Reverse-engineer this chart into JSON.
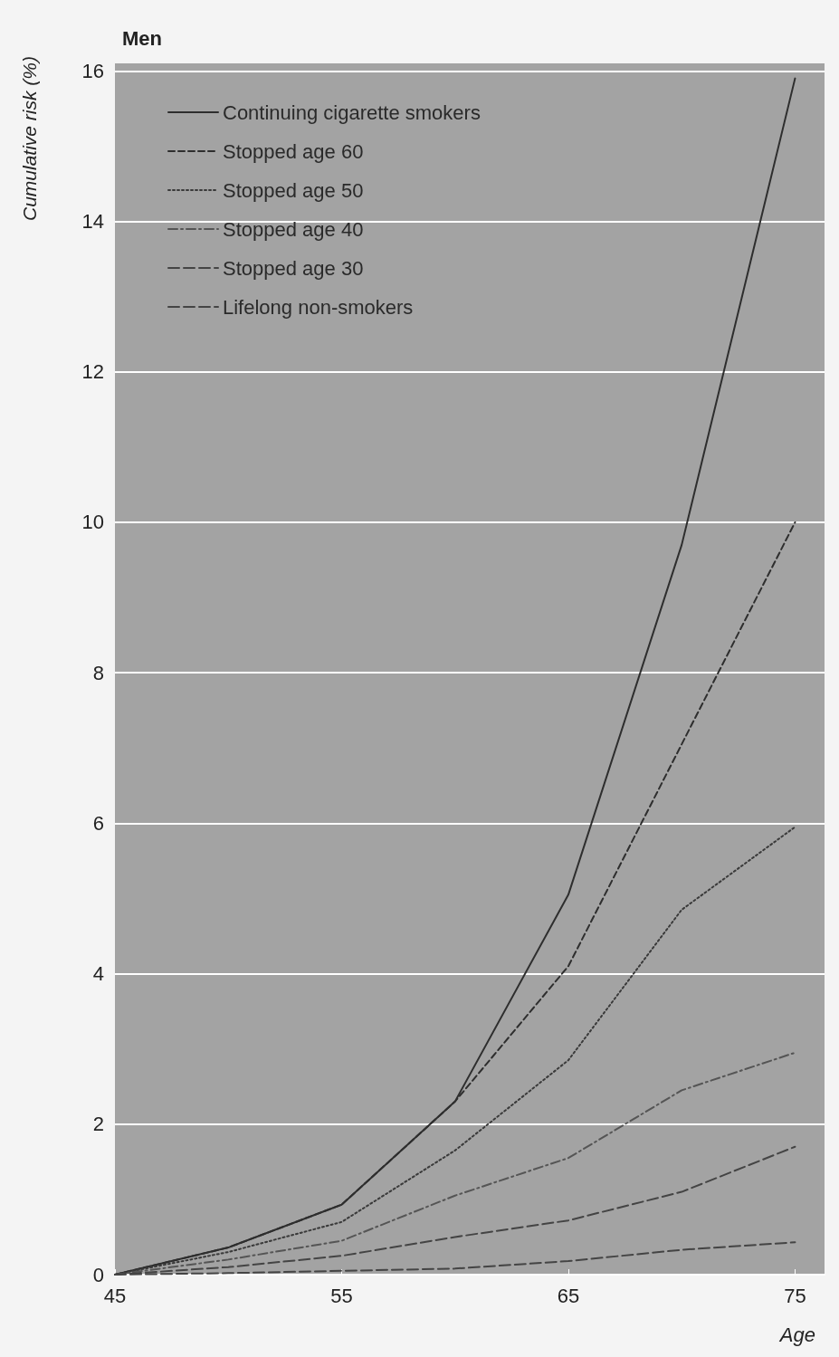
{
  "chart_data": {
    "type": "line",
    "title": "Men",
    "ylabel": "Cumulative risk (%)",
    "xlabel": "Age",
    "x": [
      45,
      50,
      55,
      60,
      65,
      70,
      75
    ],
    "series": [
      {
        "name": "Continuing cigarette smokers",
        "color": "#2e2e2e",
        "line_style": "solid",
        "values": [
          0,
          0.36,
          0.93,
          2.3,
          5.05,
          9.7,
          15.9
        ]
      },
      {
        "name": "Stopped age 60",
        "color": "#2e2e2e",
        "line_style": "dashed",
        "values": [
          0,
          0.36,
          0.93,
          2.3,
          4.1,
          7.05,
          10.0
        ]
      },
      {
        "name": "Stopped age 50",
        "color": "#3a3a3a",
        "line_style": "dotted",
        "values": [
          0,
          0.3,
          0.7,
          1.65,
          2.85,
          4.85,
          5.95
        ]
      },
      {
        "name": "Stopped age 40",
        "color": "#555555",
        "line_style": "dashdot",
        "values": [
          0,
          0.2,
          0.45,
          1.05,
          1.55,
          2.45,
          2.95
        ]
      },
      {
        "name": "Stopped age 30",
        "color": "#444444",
        "line_style": "longdash",
        "values": [
          0,
          0.1,
          0.25,
          0.5,
          0.72,
          1.1,
          1.7
        ]
      },
      {
        "name": "Lifelong non-smokers",
        "color": "#444444",
        "line_style": "longdash",
        "values": [
          0,
          0.02,
          0.05,
          0.08,
          0.18,
          0.33,
          0.43
        ]
      }
    ],
    "xlim": [
      45,
      76.3
    ],
    "xticks": [
      45,
      55,
      65,
      75
    ],
    "ylim": [
      0,
      16.1
    ],
    "yticks": [
      0,
      2,
      4,
      6,
      8,
      10,
      12,
      14,
      16
    ],
    "grid": "y",
    "legend": "top left",
    "marker": "none"
  }
}
